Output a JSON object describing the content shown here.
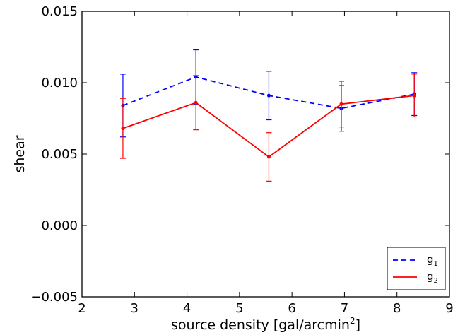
{
  "chart_data": {
    "type": "line",
    "xlabel": "source density [gal/arcmin",
    "xlabel_sup": "2",
    "xlabel_suffix": "]",
    "ylabel": "shear",
    "xlim": [
      2,
      9
    ],
    "ylim": [
      -0.005,
      0.015
    ],
    "x_ticks": [
      "2",
      "3",
      "4",
      "5",
      "6",
      "7",
      "8",
      "9"
    ],
    "y_ticks": [
      "−0.005",
      "0.000",
      "0.005",
      "0.010",
      "0.015"
    ],
    "legend_position": "lower-right",
    "grid": false,
    "series": [
      {
        "name": "g",
        "subscript": "1",
        "color": "#0000ff",
        "style": "dashed",
        "x": [
          2.78,
          4.17,
          5.56,
          6.94,
          8.33
        ],
        "y": [
          0.0084,
          0.0104,
          0.0091,
          0.0082,
          0.0092
        ],
        "err": [
          0.0022,
          0.0019,
          0.0017,
          0.0016,
          0.0015
        ]
      },
      {
        "name": "g",
        "subscript": "2",
        "color": "#ff0000",
        "style": "solid",
        "x": [
          2.78,
          4.17,
          5.56,
          6.94,
          8.33
        ],
        "y": [
          0.0068,
          0.0086,
          0.0048,
          0.0085,
          0.0091
        ],
        "err": [
          0.0021,
          0.0019,
          0.0017,
          0.0016,
          0.0015
        ]
      }
    ]
  }
}
